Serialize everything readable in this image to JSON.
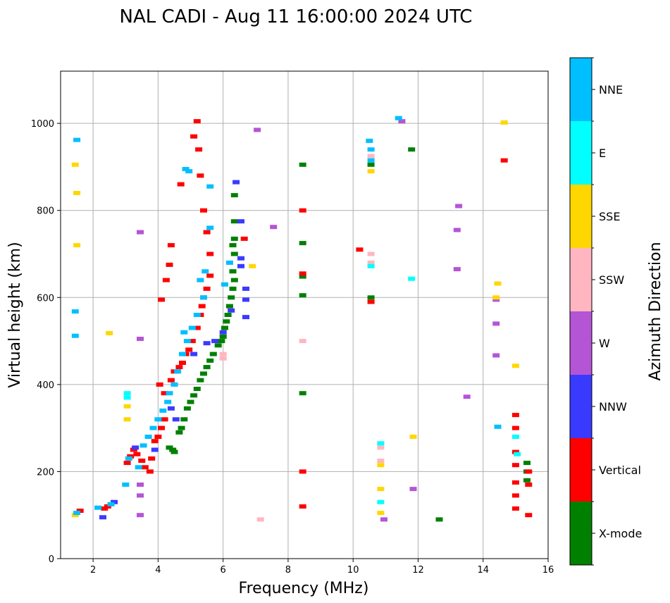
{
  "chart_data": {
    "type": "scatter",
    "title": "NAL CADI - Aug 11 16:00:00 2024 UTC",
    "xlabel": "Frequency (MHz)",
    "ylabel": "Virtual height (km)",
    "xlim": [
      1,
      16
    ],
    "ylim": [
      0,
      1120
    ],
    "xticks": [
      2,
      4,
      6,
      8,
      10,
      12,
      14,
      16
    ],
    "yticks": [
      0,
      200,
      400,
      600,
      800,
      1000
    ],
    "grid": true,
    "colorbar": {
      "title": "Azimuth Direction",
      "position": "right",
      "categories": [
        {
          "label": "X-mode",
          "color": "#008000"
        },
        {
          "label": "Vertical",
          "color": "#ff0000"
        },
        {
          "label": "NNW",
          "color": "#3a3aff"
        },
        {
          "label": "W",
          "color": "#b455d6"
        },
        {
          "label": "SSW",
          "color": "#ffb6c1"
        },
        {
          "label": "SSE",
          "color": "#ffd700"
        },
        {
          "label": "E",
          "color": "#00ffff"
        },
        {
          "label": "NNE",
          "color": "#00bfff"
        }
      ]
    },
    "series": [
      {
        "name": "X-mode",
        "points": [
          [
            4.35,
            255
          ],
          [
            4.45,
            250
          ],
          [
            4.5,
            245
          ],
          [
            4.65,
            290
          ],
          [
            4.72,
            300
          ],
          [
            4.8,
            320
          ],
          [
            4.9,
            345
          ],
          [
            5.0,
            360
          ],
          [
            5.1,
            375
          ],
          [
            5.2,
            390
          ],
          [
            5.3,
            410
          ],
          [
            5.4,
            425
          ],
          [
            5.5,
            440
          ],
          [
            5.6,
            455
          ],
          [
            5.7,
            470
          ],
          [
            5.85,
            490
          ],
          [
            5.95,
            500
          ],
          [
            6.0,
            510
          ],
          [
            6.05,
            530
          ],
          [
            6.1,
            545
          ],
          [
            6.15,
            560
          ],
          [
            6.2,
            580
          ],
          [
            6.25,
            600
          ],
          [
            6.3,
            620
          ],
          [
            6.35,
            640
          ],
          [
            6.3,
            660
          ],
          [
            6.35,
            700
          ],
          [
            6.3,
            720
          ],
          [
            6.35,
            735
          ],
          [
            6.35,
            775
          ],
          [
            6.35,
            835
          ],
          [
            8.45,
            648
          ],
          [
            8.45,
            605
          ],
          [
            8.45,
            725
          ],
          [
            8.45,
            905
          ],
          [
            8.45,
            380
          ],
          [
            10.55,
            905
          ],
          [
            10.55,
            600
          ],
          [
            11.8,
            940
          ],
          [
            12.65,
            90
          ],
          [
            15.35,
            180
          ],
          [
            15.35,
            200
          ],
          [
            15.35,
            220
          ]
        ]
      },
      {
        "name": "Vertical",
        "points": [
          [
            1.6,
            110
          ],
          [
            2.35,
            115
          ],
          [
            2.45,
            120
          ],
          [
            3.05,
            220
          ],
          [
            3.15,
            235
          ],
          [
            3.25,
            250
          ],
          [
            3.35,
            240
          ],
          [
            3.5,
            225
          ],
          [
            3.6,
            210
          ],
          [
            3.75,
            200
          ],
          [
            3.8,
            230
          ],
          [
            3.9,
            270
          ],
          [
            4.0,
            280
          ],
          [
            4.1,
            300
          ],
          [
            4.2,
            320
          ],
          [
            4.05,
            400
          ],
          [
            4.2,
            380
          ],
          [
            4.4,
            410
          ],
          [
            4.5,
            430
          ],
          [
            4.65,
            440
          ],
          [
            4.75,
            450
          ],
          [
            4.85,
            470
          ],
          [
            4.95,
            480
          ],
          [
            5.05,
            500
          ],
          [
            5.2,
            530
          ],
          [
            5.3,
            560
          ],
          [
            5.35,
            580
          ],
          [
            5.4,
            600
          ],
          [
            5.5,
            620
          ],
          [
            5.6,
            650
          ],
          [
            5.6,
            700
          ],
          [
            5.5,
            750
          ],
          [
            5.4,
            800
          ],
          [
            5.3,
            880
          ],
          [
            5.25,
            940
          ],
          [
            5.1,
            970
          ],
          [
            5.2,
            1005
          ],
          [
            4.7,
            860
          ],
          [
            4.1,
            595
          ],
          [
            4.25,
            640
          ],
          [
            4.35,
            675
          ],
          [
            4.4,
            720
          ],
          [
            6.65,
            735
          ],
          [
            8.45,
            800
          ],
          [
            8.45,
            655
          ],
          [
            8.45,
            200
          ],
          [
            8.45,
            120
          ],
          [
            10.2,
            710
          ],
          [
            10.55,
            590
          ],
          [
            14.65,
            915
          ],
          [
            15.0,
            330
          ],
          [
            15.0,
            300
          ],
          [
            15.0,
            245
          ],
          [
            15.0,
            215
          ],
          [
            15.0,
            175
          ],
          [
            15.0,
            145
          ],
          [
            15.0,
            115
          ],
          [
            15.4,
            200
          ],
          [
            15.4,
            170
          ],
          [
            15.4,
            100
          ]
        ]
      },
      {
        "name": "NNW",
        "points": [
          [
            2.3,
            95
          ],
          [
            2.65,
            130
          ],
          [
            3.3,
            255
          ],
          [
            3.9,
            250
          ],
          [
            4.4,
            345
          ],
          [
            4.55,
            320
          ],
          [
            5.1,
            470
          ],
          [
            5.5,
            495
          ],
          [
            5.75,
            500
          ],
          [
            6.0,
            520
          ],
          [
            6.25,
            570
          ],
          [
            6.4,
            865
          ],
          [
            6.55,
            775
          ],
          [
            6.55,
            690
          ],
          [
            6.55,
            672
          ],
          [
            6.7,
            595
          ],
          [
            6.7,
            620
          ],
          [
            6.7,
            555
          ]
        ]
      },
      {
        "name": "W",
        "points": [
          [
            3.45,
            750
          ],
          [
            3.45,
            505
          ],
          [
            3.45,
            170
          ],
          [
            3.45,
            145
          ],
          [
            3.45,
            100
          ],
          [
            7.05,
            985
          ],
          [
            7.55,
            762
          ],
          [
            10.95,
            90
          ],
          [
            11.5,
            1005
          ],
          [
            11.85,
            160
          ],
          [
            13.25,
            810
          ],
          [
            13.2,
            755
          ],
          [
            13.2,
            665
          ],
          [
            13.5,
            372
          ],
          [
            14.4,
            540
          ],
          [
            14.4,
            595
          ],
          [
            14.4,
            467
          ]
        ]
      },
      {
        "name": "SSW",
        "points": [
          [
            7.15,
            90
          ],
          [
            8.45,
            500
          ],
          [
            10.55,
            700
          ],
          [
            10.55,
            680
          ],
          [
            10.55,
            925
          ],
          [
            10.85,
            255
          ],
          [
            10.85,
            225
          ],
          [
            6.0,
            460
          ],
          [
            6.0,
            470
          ]
        ]
      },
      {
        "name": "SSE",
        "points": [
          [
            1.45,
            905
          ],
          [
            1.5,
            840
          ],
          [
            1.5,
            720
          ],
          [
            1.45,
            100
          ],
          [
            2.5,
            518
          ],
          [
            3.05,
            320
          ],
          [
            3.05,
            350
          ],
          [
            6.9,
            672
          ],
          [
            10.55,
            890
          ],
          [
            10.85,
            160
          ],
          [
            10.85,
            105
          ],
          [
            10.85,
            215
          ],
          [
            11.85,
            280
          ],
          [
            14.45,
            632
          ],
          [
            14.4,
            600
          ],
          [
            14.65,
            1002
          ],
          [
            15.0,
            443
          ]
        ]
      },
      {
        "name": "E",
        "points": [
          [
            3.05,
            380
          ],
          [
            3.05,
            370
          ],
          [
            10.55,
            672
          ],
          [
            10.85,
            130
          ],
          [
            10.85,
            265
          ],
          [
            11.8,
            643
          ],
          [
            15.0,
            280
          ],
          [
            15.05,
            240
          ]
        ]
      },
      {
        "name": "NNE",
        "points": [
          [
            1.5,
            962
          ],
          [
            1.45,
            568
          ],
          [
            1.45,
            512
          ],
          [
            1.5,
            105
          ],
          [
            2.15,
            117
          ],
          [
            2.55,
            125
          ],
          [
            3.0,
            170
          ],
          [
            3.1,
            230
          ],
          [
            3.4,
            210
          ],
          [
            3.55,
            260
          ],
          [
            3.7,
            280
          ],
          [
            3.85,
            300
          ],
          [
            4.0,
            320
          ],
          [
            4.15,
            340
          ],
          [
            4.3,
            360
          ],
          [
            4.35,
            380
          ],
          [
            4.5,
            400
          ],
          [
            4.6,
            430
          ],
          [
            4.75,
            470
          ],
          [
            4.8,
            520
          ],
          [
            4.9,
            500
          ],
          [
            5.05,
            530
          ],
          [
            5.2,
            560
          ],
          [
            5.4,
            600
          ],
          [
            5.45,
            660
          ],
          [
            5.6,
            760
          ],
          [
            5.6,
            855
          ],
          [
            4.85,
            895
          ],
          [
            4.95,
            890
          ],
          [
            5.3,
            640
          ],
          [
            6.05,
            630
          ],
          [
            6.2,
            680
          ],
          [
            10.5,
            960
          ],
          [
            10.55,
            940
          ],
          [
            10.55,
            915
          ],
          [
            11.4,
            1012
          ],
          [
            14.45,
            303
          ]
        ]
      }
    ]
  }
}
